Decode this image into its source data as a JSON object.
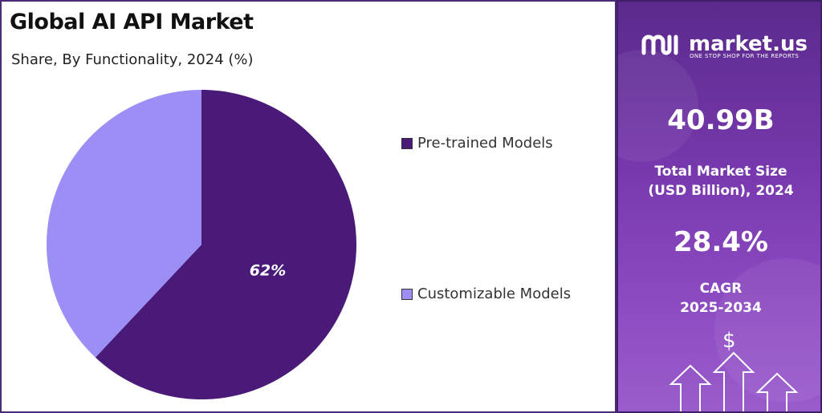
{
  "header": {
    "title": "Global AI API Market",
    "subtitle": "Share, By Functionality, 2024 (%)"
  },
  "colors": {
    "pretrained": "#4a1a78",
    "customizable": "#9b8ff5",
    "panel_bg": "#7a3ab0"
  },
  "chart_data": {
    "type": "pie",
    "title": "Global AI API Market",
    "subtitle": "Share, By Functionality, 2024 (%)",
    "slices": [
      {
        "label": "Pre-trained Models",
        "value": 62,
        "display": "62%",
        "color": "#4a1a78"
      },
      {
        "label": "Customizable Models",
        "value": 38,
        "display": "",
        "color": "#9b8ff5"
      }
    ],
    "legend_position": "right"
  },
  "sidebar": {
    "brand_name": "market.us",
    "brand_tagline": "ONE STOP SHOP FOR THE REPORTS",
    "market_size_value": "40.99B",
    "market_size_label_1": "Total Market Size",
    "market_size_label_2": "(USD Billion), 2024",
    "cagr_value": "28.4%",
    "cagr_label_1": "CAGR",
    "cagr_label_2": "2025-2034",
    "currency_symbol": "$",
    "icon": "rising-arrows-icon"
  }
}
